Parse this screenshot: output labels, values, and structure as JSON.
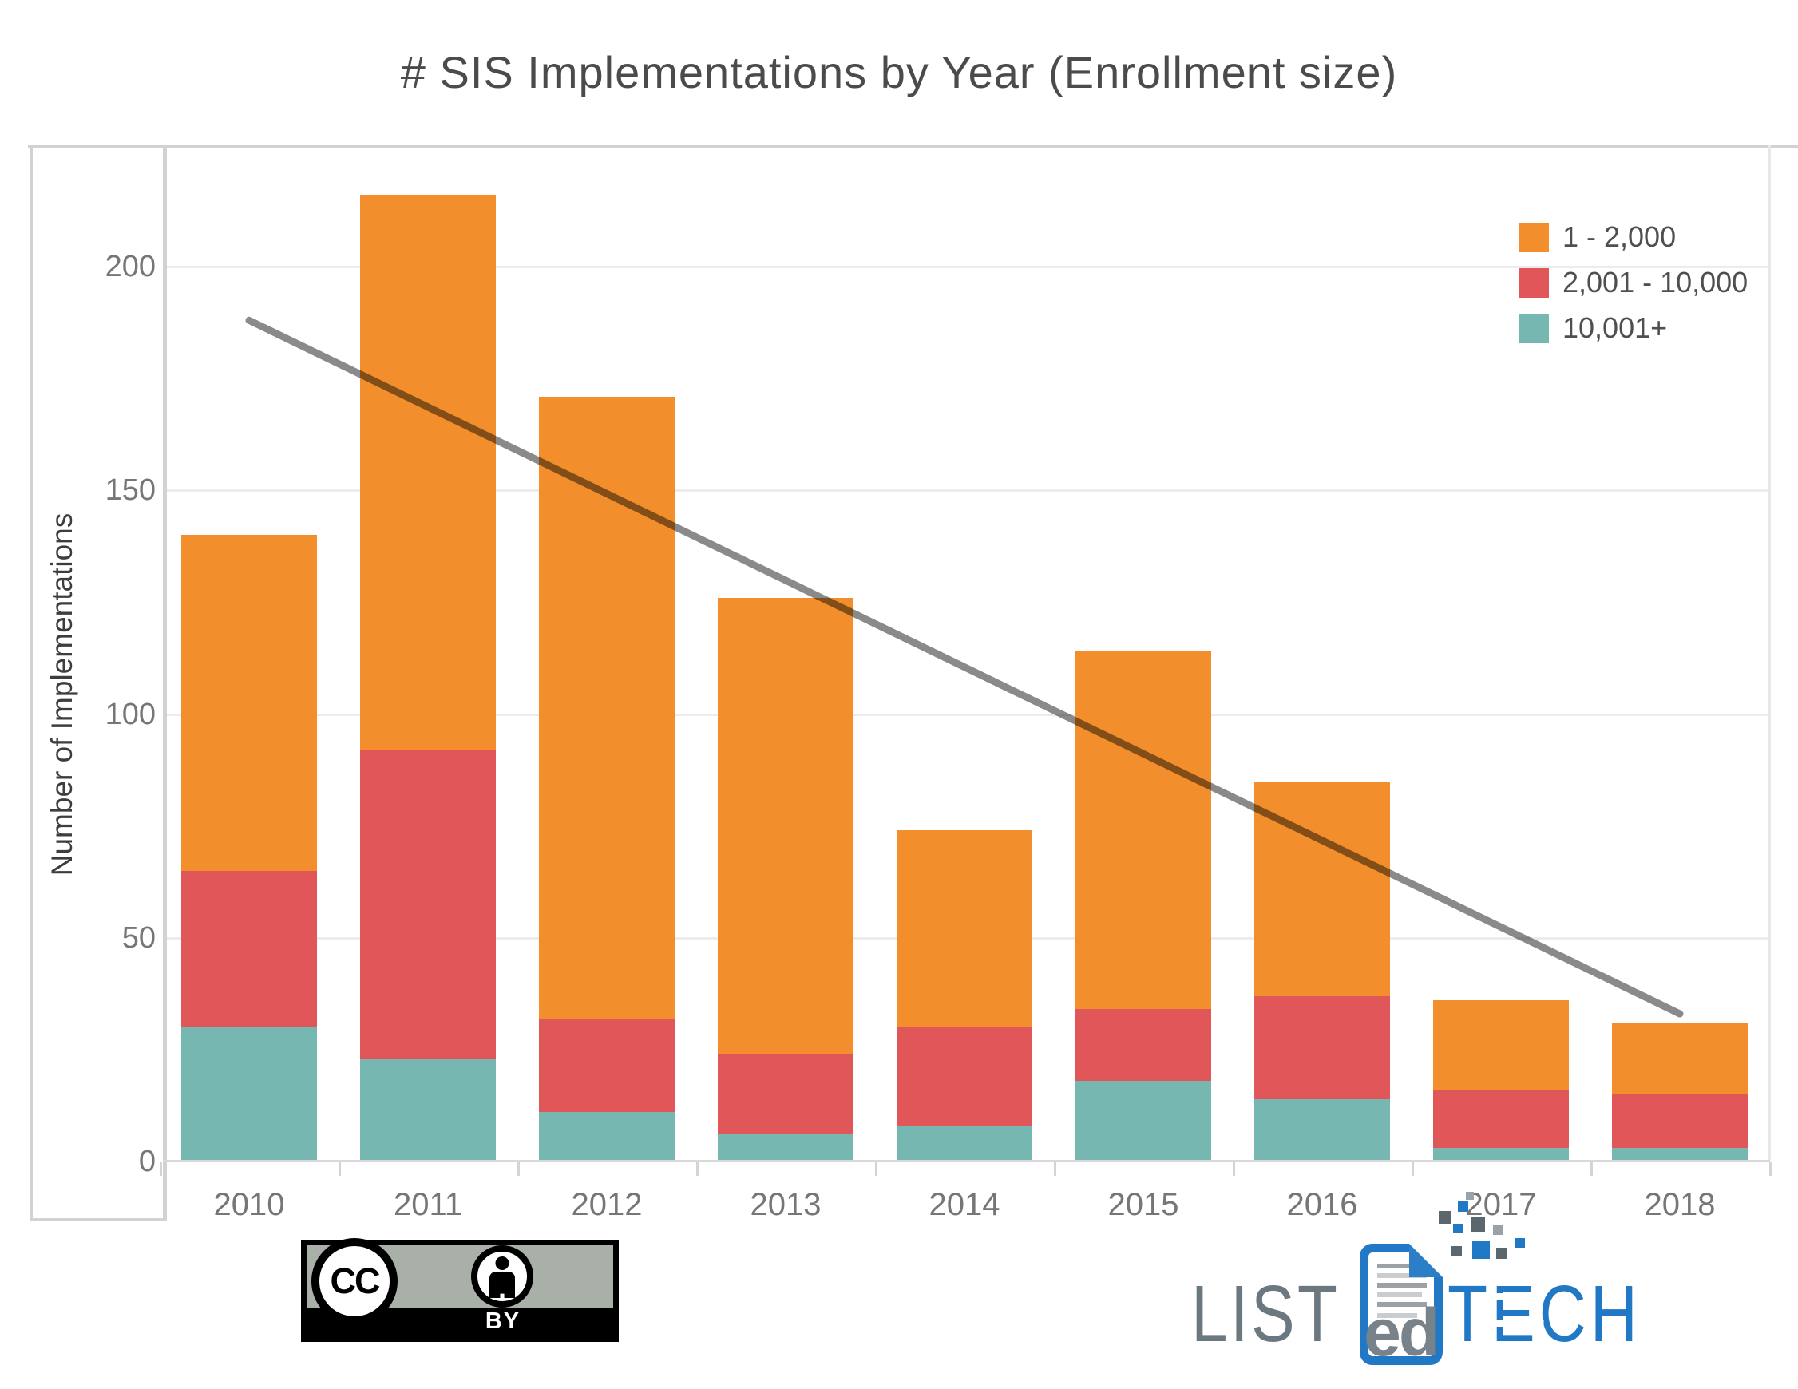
{
  "page": {
    "title": "# SIS Implementations by Year (Enrollment size)"
  },
  "chart_data": {
    "type": "bar",
    "stacked": true,
    "title": "# SIS Implementations by Year (Enrollment size)",
    "xlabel": "",
    "ylabel": "Number of Implementations",
    "categories": [
      "2010",
      "2011",
      "2012",
      "2013",
      "2014",
      "2015",
      "2016",
      "2017",
      "2018"
    ],
    "series": [
      {
        "name": "1 - 2,000",
        "color": "#F28E2B",
        "values": [
          75,
          124,
          139,
          102,
          44,
          80,
          48,
          20,
          16
        ]
      },
      {
        "name": "2,001 - 10,000",
        "color": "#E15759",
        "values": [
          35,
          69,
          21,
          18,
          22,
          16,
          23,
          13,
          12
        ]
      },
      {
        "name": "10,001+",
        "color": "#76B7B2",
        "values": [
          30,
          23,
          11,
          6,
          8,
          18,
          14,
          3,
          3
        ]
      }
    ],
    "stack_order_bottom_to_top": [
      "10,001+",
      "2,001 - 10,000",
      "1 - 2,000"
    ],
    "totals": [
      140,
      216,
      171,
      126,
      74,
      114,
      85,
      36,
      31
    ],
    "y_ticks": [
      0,
      50,
      100,
      150,
      200
    ],
    "ylim": [
      0,
      230
    ],
    "grid": "horizontal-gridlines-on",
    "legend_position": "top-right",
    "legend_order": [
      "1 - 2,000",
      "2,001 - 10,000",
      "10,001+"
    ],
    "trend_line": {
      "from_category": "2010",
      "from_value": 188,
      "to_category": "2018",
      "to_value": 33,
      "color": "#8a8a8a"
    }
  },
  "colors": {
    "background": "#ffffff",
    "title_text": "#4b4b4b",
    "tick_text": "#767676",
    "axis_line": "#d2d2d2",
    "gridline": "#ececec",
    "orange": "#F28E2B",
    "red": "#E15759",
    "teal": "#76B7B2",
    "trend": "#8a8a8a"
  },
  "footer": {
    "license_badge": {
      "cc_label": "CC",
      "by_label": "BY"
    },
    "logo": {
      "part1": "LIST",
      "part2": "ed",
      "part3_t": "T",
      "part3_e": "E",
      "part3_ch": "CH",
      "blue": "#2178C4",
      "gray": "#6C7880"
    }
  }
}
